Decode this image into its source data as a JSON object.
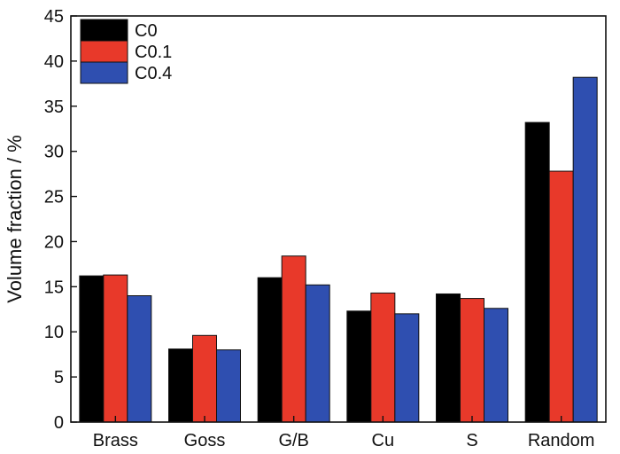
{
  "chart_data": {
    "type": "bar",
    "title": "",
    "xlabel": "",
    "ylabel": "Volume fraction / %",
    "ylim": [
      0,
      45
    ],
    "yticks": [
      "0",
      "5",
      "10",
      "15",
      "20",
      "25",
      "30",
      "35",
      "40",
      "45"
    ],
    "categories": [
      "Brass",
      "Goss",
      "G/B",
      "Cu",
      "S",
      "Random"
    ],
    "series": [
      {
        "name": "C0",
        "color": "#000000",
        "values": [
          16.2,
          8.1,
          16.0,
          12.3,
          14.2,
          33.2
        ]
      },
      {
        "name": "C0.1",
        "color": "#e8392a",
        "values": [
          16.3,
          9.6,
          18.4,
          14.3,
          13.7,
          27.8
        ]
      },
      {
        "name": "C0.4",
        "color": "#2f4fb0",
        "values": [
          14.0,
          8.0,
          15.2,
          12.0,
          12.6,
          38.2
        ]
      }
    ],
    "grid": false,
    "legend_position": "top-left"
  }
}
